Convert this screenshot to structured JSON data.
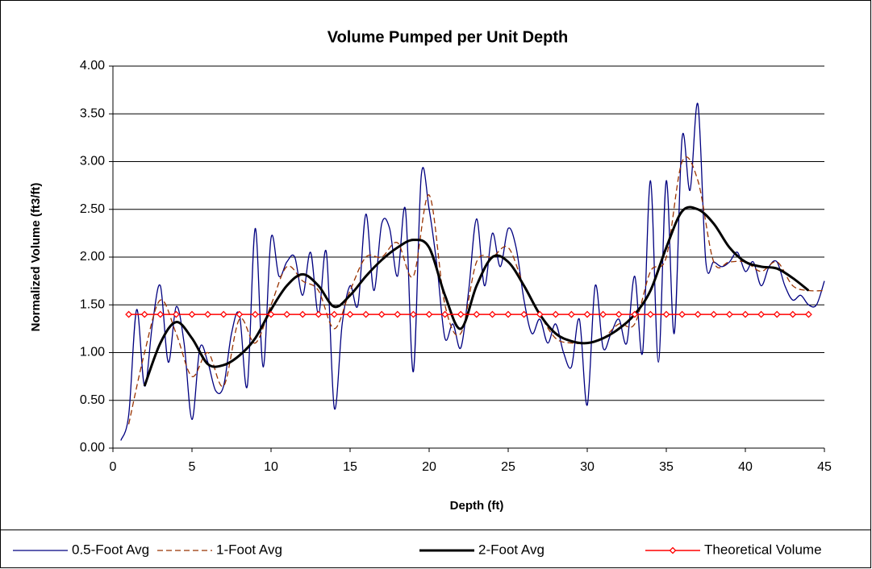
{
  "chart_data": {
    "type": "line",
    "title": "Volume Pumped per Unit Depth",
    "x_label": "Depth (ft)",
    "y_label": "Normalized Volume (ft3/ft)",
    "xlim": [
      0,
      45
    ],
    "xticks": [
      0,
      5,
      10,
      15,
      20,
      25,
      30,
      35,
      40,
      45
    ],
    "ylim": [
      0,
      4
    ],
    "yticks": [
      {
        "value": 0,
        "label": "0.00"
      },
      {
        "value": 0.5,
        "label": "0.50"
      },
      {
        "value": 1,
        "label": "1.00"
      },
      {
        "value": 1.5,
        "label": "1.50"
      },
      {
        "value": 2,
        "label": "2.00"
      },
      {
        "value": 2.5,
        "label": "2.50"
      },
      {
        "value": 3,
        "label": "3.00"
      },
      {
        "value": 3.5,
        "label": "3.50"
      },
      {
        "value": 4,
        "label": "4.00"
      }
    ],
    "grid": true,
    "legend": "bottom",
    "series": [
      {
        "name": "0.5-Foot Avg",
        "color": "#000080",
        "x": [
          0.5,
          1,
          1.5,
          2,
          2.5,
          3,
          3.5,
          4,
          4.5,
          5,
          5.5,
          6,
          6.5,
          7,
          7.5,
          8,
          8.5,
          9,
          9.5,
          10,
          10.5,
          11,
          11.5,
          12,
          12.5,
          13,
          13.5,
          14,
          14.5,
          15,
          15.5,
          16,
          16.5,
          17,
          17.5,
          18,
          18.5,
          19,
          19.5,
          20,
          20.5,
          21,
          21.5,
          22,
          22.5,
          23,
          23.5,
          24,
          24.5,
          25,
          25.5,
          26,
          26.5,
          27,
          27.5,
          28,
          28.5,
          29,
          29.5,
          30,
          30.5,
          31,
          31.5,
          32,
          32.5,
          33,
          33.5,
          34,
          34.5,
          35,
          35.5,
          36,
          36.5,
          37,
          37.5,
          38,
          38.5,
          39,
          39.5,
          40,
          40.5,
          41,
          41.5,
          42,
          42.5,
          43,
          43.5,
          44,
          44.5,
          45
        ],
        "values": [
          0.08,
          0.35,
          1.45,
          0.65,
          1.3,
          1.7,
          0.9,
          1.48,
          1.1,
          0.3,
          1.05,
          0.9,
          0.6,
          0.65,
          1.2,
          1.4,
          0.65,
          2.3,
          0.85,
          2.2,
          1.8,
          1.95,
          2.0,
          1.6,
          2.05,
          1.4,
          2.05,
          0.42,
          1.3,
          1.7,
          1.5,
          2.45,
          1.65,
          2.35,
          2.3,
          1.8,
          2.5,
          0.8,
          2.85,
          2.5,
          1.9,
          1.15,
          1.3,
          1.05,
          1.65,
          2.4,
          1.7,
          2.25,
          1.9,
          2.3,
          2.1,
          1.55,
          1.2,
          1.35,
          1.1,
          1.3,
          1.0,
          0.85,
          1.35,
          0.45,
          1.7,
          1.05,
          1.2,
          1.35,
          1.1,
          1.8,
          1.0,
          2.8,
          0.9,
          2.8,
          1.2,
          3.25,
          2.7,
          3.6,
          1.95,
          1.95,
          1.9,
          1.95,
          2.05,
          1.85,
          1.95,
          1.7,
          1.9,
          1.95,
          1.7,
          1.55,
          1.6,
          1.5,
          1.5,
          1.75
        ]
      },
      {
        "name": "1-Foot Avg",
        "color": "#993300",
        "x": [
          1,
          2,
          3,
          4,
          5,
          6,
          7,
          8,
          9,
          10,
          11,
          12,
          13,
          14,
          15,
          16,
          17,
          18,
          19,
          20,
          21,
          22,
          23,
          24,
          25,
          26,
          27,
          28,
          29,
          30,
          31,
          32,
          33,
          34,
          35,
          36,
          37,
          38,
          39,
          40,
          41,
          42,
          43,
          44,
          45
        ],
        "values": [
          0.25,
          1.0,
          1.55,
          1.2,
          0.75,
          1.0,
          0.65,
          1.35,
          1.1,
          1.5,
          1.9,
          1.75,
          1.65,
          1.25,
          1.65,
          2.0,
          2.0,
          2.15,
          1.8,
          2.65,
          1.5,
          1.2,
          1.95,
          2.0,
          2.1,
          1.7,
          1.4,
          1.15,
          1.1,
          1.1,
          1.15,
          1.3,
          1.3,
          1.85,
          2.0,
          3.0,
          2.8,
          1.95,
          1.95,
          1.95,
          1.85,
          1.95,
          1.7,
          1.65,
          1.65
        ]
      },
      {
        "name": "2-Foot Avg",
        "color": "#000000",
        "x": [
          2,
          3,
          4,
          5,
          6,
          7,
          8,
          9,
          10,
          11,
          12,
          13,
          14,
          15,
          16,
          17,
          18,
          19,
          20,
          21,
          22,
          23,
          24,
          25,
          26,
          27,
          28,
          29,
          30,
          31,
          32,
          33,
          34,
          35,
          36,
          37,
          38,
          39,
          40,
          41,
          42,
          43,
          44
        ],
        "values": [
          0.65,
          1.1,
          1.32,
          1.15,
          0.88,
          0.87,
          0.97,
          1.15,
          1.45,
          1.7,
          1.82,
          1.7,
          1.48,
          1.6,
          1.8,
          1.97,
          2.1,
          2.18,
          2.1,
          1.6,
          1.25,
          1.7,
          2.0,
          1.95,
          1.7,
          1.4,
          1.2,
          1.12,
          1.1,
          1.15,
          1.25,
          1.4,
          1.65,
          2.1,
          2.48,
          2.5,
          2.35,
          2.1,
          1.95,
          1.9,
          1.88,
          1.78,
          1.65
        ]
      },
      {
        "name": "Theoretical Volume",
        "color": "#ff0000",
        "x": [
          1,
          2,
          3,
          4,
          5,
          6,
          7,
          8,
          9,
          10,
          11,
          12,
          13,
          14,
          15,
          16,
          17,
          18,
          19,
          20,
          21,
          22,
          23,
          24,
          25,
          26,
          27,
          28,
          29,
          30,
          31,
          32,
          33,
          34,
          35,
          36,
          37,
          38,
          39,
          40,
          41,
          42,
          43,
          44
        ],
        "values": [
          1.4,
          1.4,
          1.4,
          1.4,
          1.4,
          1.4,
          1.4,
          1.4,
          1.4,
          1.4,
          1.4,
          1.4,
          1.4,
          1.4,
          1.4,
          1.4,
          1.4,
          1.4,
          1.4,
          1.4,
          1.4,
          1.4,
          1.4,
          1.4,
          1.4,
          1.4,
          1.4,
          1.4,
          1.4,
          1.4,
          1.4,
          1.4,
          1.4,
          1.4,
          1.4,
          1.4,
          1.4,
          1.4,
          1.4,
          1.4,
          1.4,
          1.4,
          1.4,
          1.4
        ]
      }
    ]
  }
}
